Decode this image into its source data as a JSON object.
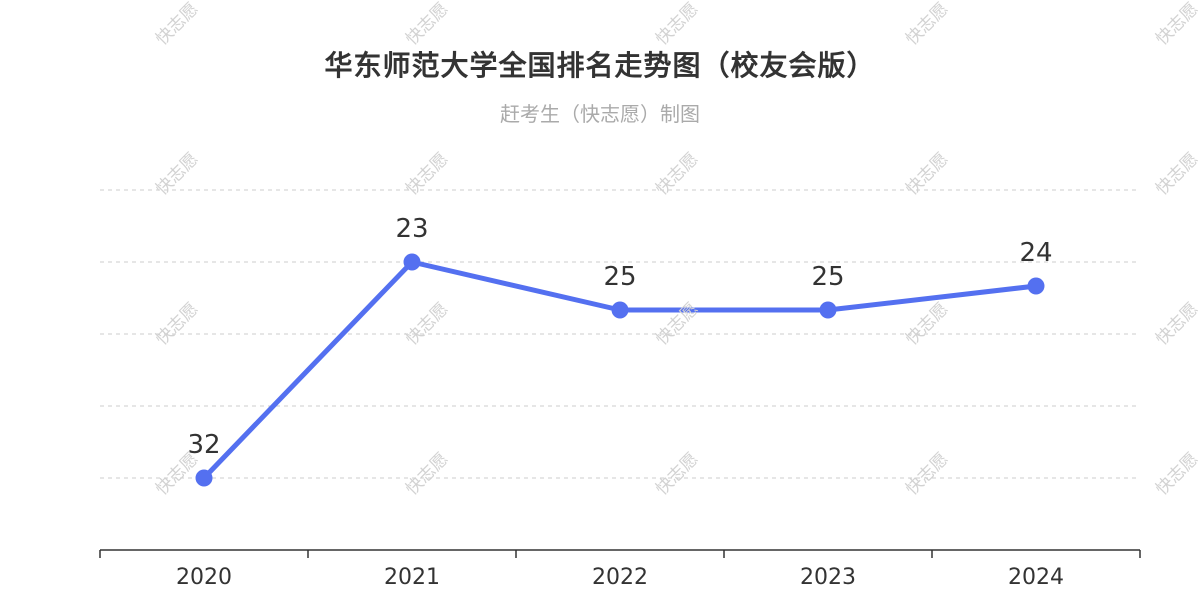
{
  "title": "华东师范大学全国排名走势图（校友会版）",
  "subtitle": "赶考生（快志愿）制图",
  "watermark": "快志愿",
  "colors": {
    "line": "#5470f0",
    "grid": "#cccccc",
    "axis": "#333333",
    "label": "#333333"
  },
  "chart_data": {
    "type": "line",
    "categories": [
      "2020",
      "2021",
      "2022",
      "2023",
      "2024"
    ],
    "series": [
      {
        "values": [
          32,
          23,
          25,
          25,
          24
        ]
      }
    ],
    "y_inverted": true,
    "ylim": [
      20,
      35
    ],
    "grid": true,
    "y_tick_labels_shown": false
  }
}
